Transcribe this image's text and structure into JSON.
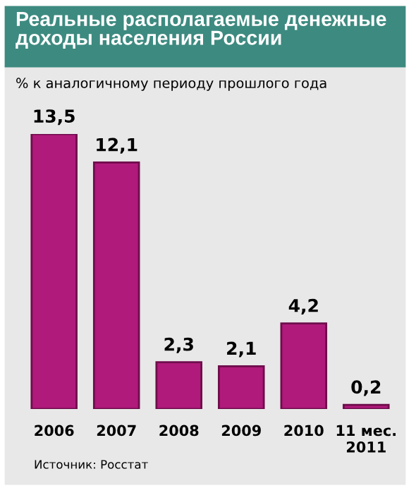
{
  "chart_data": {
    "type": "bar",
    "title": "Реальные располагаемые денежные доходы населения России",
    "subtitle": "% к аналогичному периоду прошлого года",
    "categories": [
      "2006",
      "2007",
      "2008",
      "2009",
      "2010",
      "11 мес.\n2011"
    ],
    "values": [
      13.5,
      12.1,
      2.3,
      2.1,
      4.2,
      0.2
    ],
    "value_labels": [
      "13,5",
      "12,1",
      "2,3",
      "2,1",
      "4,2",
      "0,2"
    ],
    "color": "#b01a7a",
    "annotations": [
      "Источник: Росстат"
    ],
    "grid": false,
    "legend": false
  }
}
